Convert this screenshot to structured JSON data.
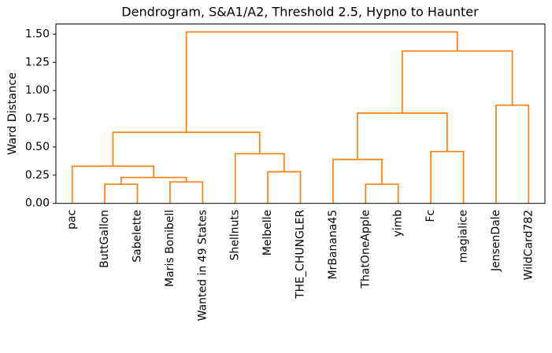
{
  "chart_data": {
    "type": "dendrogram",
    "title": "Dendrogram, S&A1/A2, Threshold 2.5, Hypno to Haunter",
    "ylabel": "Ward Distance",
    "xlabel": "",
    "color": "#ff7f0e",
    "axis_color": "#000000",
    "background": "#ffffff",
    "ylim": [
      0,
      1.59
    ],
    "yticks": [
      "0.00",
      "0.25",
      "0.50",
      "0.75",
      "1.00",
      "1.25",
      "1.50"
    ],
    "grid": false,
    "legend": false,
    "leaf_labels": [
      "pac",
      "ButtGallon",
      "Sabelette",
      "Maris Bonibell",
      "Wanted in 49 States",
      "Shellnuts",
      "Melbelle",
      "THE_CHUNGLER",
      "MrBanana45",
      "ThatOneApple",
      "yimb",
      "Fc",
      "magialice",
      "JensenDale",
      "WildCard782"
    ],
    "tree": {
      "h": 1.52,
      "children": [
        {
          "h": 0.63,
          "children": [
            {
              "h": 0.33,
              "children": [
                {
                  "leaf": "pac"
                },
                {
                  "h": 0.23,
                  "children": [
                    {
                      "h": 0.17,
                      "children": [
                        {
                          "leaf": "ButtGallon"
                        },
                        {
                          "leaf": "Sabelette"
                        }
                      ]
                    },
                    {
                      "h": 0.19,
                      "children": [
                        {
                          "leaf": "Maris Bonibell"
                        },
                        {
                          "leaf": "Wanted in 49 States"
                        }
                      ]
                    }
                  ]
                }
              ]
            },
            {
              "h": 0.44,
              "children": [
                {
                  "leaf": "Shellnuts"
                },
                {
                  "h": 0.28,
                  "children": [
                    {
                      "leaf": "Melbelle"
                    },
                    {
                      "leaf": "THE_CHUNGLER"
                    }
                  ]
                }
              ]
            }
          ]
        },
        {
          "h": 1.35,
          "children": [
            {
              "h": 0.8,
              "children": [
                {
                  "h": 0.39,
                  "children": [
                    {
                      "leaf": "MrBanana45"
                    },
                    {
                      "h": 0.17,
                      "children": [
                        {
                          "leaf": "ThatOneApple"
                        },
                        {
                          "leaf": "yimb"
                        }
                      ]
                    }
                  ]
                },
                {
                  "h": 0.46,
                  "children": [
                    {
                      "leaf": "Fc"
                    },
                    {
                      "leaf": "magialice"
                    }
                  ]
                }
              ]
            },
            {
              "h": 0.87,
              "children": [
                {
                  "leaf": "JensenDale"
                },
                {
                  "leaf": "WildCard782"
                }
              ]
            }
          ]
        }
      ]
    }
  }
}
